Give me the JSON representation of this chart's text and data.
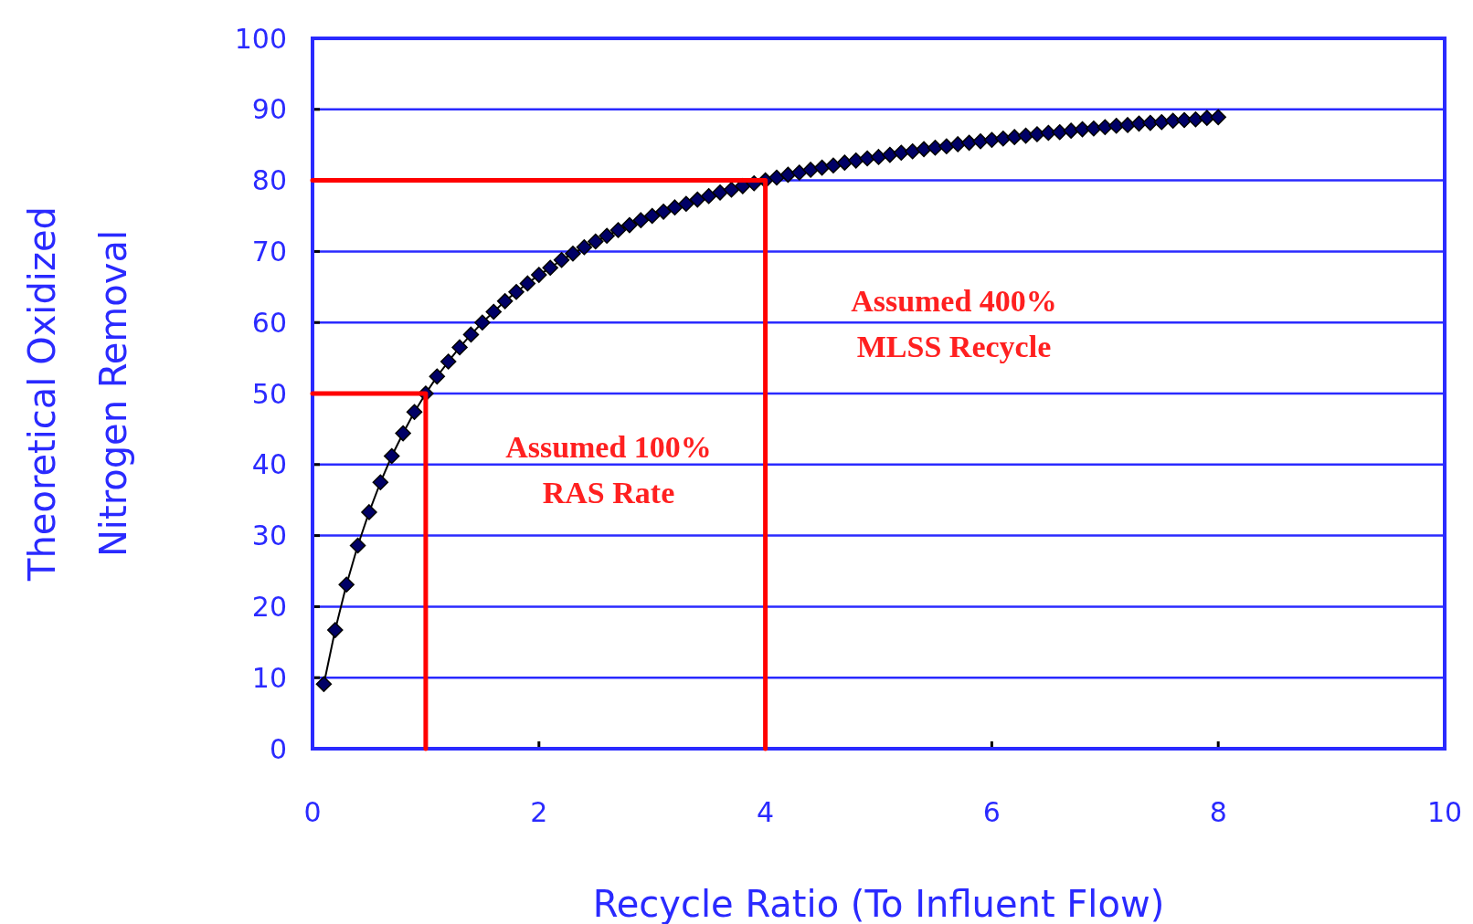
{
  "chart_data": {
    "type": "line",
    "xlabel": "Recycle Ratio (To Influent Flow)",
    "ylabel": "Theoretical Oxidized\nNitrogen Removal",
    "xlim": [
      0,
      10
    ],
    "xticks": [
      0,
      2,
      4,
      6,
      8,
      10
    ],
    "ylim": [
      0,
      100
    ],
    "yticks": [
      0,
      10,
      20,
      30,
      40,
      50,
      60,
      70,
      80,
      90,
      100
    ],
    "grid": "y",
    "marker": "diamond",
    "line_style": "solid",
    "series": [
      {
        "color": "#000066",
        "x": [
          0.1,
          0.2,
          0.3,
          0.4,
          0.5,
          0.6,
          0.7,
          0.8,
          0.9,
          1.0,
          1.1,
          1.2,
          1.3,
          1.4,
          1.5,
          1.6,
          1.7,
          1.8,
          1.9,
          2.0,
          2.1,
          2.2,
          2.3,
          2.4,
          2.5,
          2.6,
          2.7,
          2.8,
          2.9,
          3.0,
          3.1,
          3.2,
          3.3,
          3.4,
          3.5,
          3.6,
          3.7,
          3.8,
          3.9,
          4.0,
          4.1,
          4.2,
          4.3,
          4.4,
          4.5,
          4.6,
          4.7,
          4.8,
          4.9,
          5.0,
          5.1,
          5.2,
          5.3,
          5.4,
          5.5,
          5.6,
          5.7,
          5.8,
          5.9,
          6.0,
          6.1,
          6.2,
          6.3,
          6.4,
          6.5,
          6.6,
          6.7,
          6.8,
          6.9,
          7.0,
          7.1,
          7.2,
          7.3,
          7.4,
          7.5,
          7.6,
          7.7,
          7.8,
          7.9,
          8.0
        ],
        "values": [
          9.1,
          16.7,
          23.1,
          28.6,
          33.3,
          37.5,
          41.2,
          44.4,
          47.4,
          50.0,
          52.4,
          54.5,
          56.5,
          58.3,
          60.0,
          61.5,
          63.0,
          64.3,
          65.5,
          66.7,
          67.7,
          68.8,
          69.7,
          70.6,
          71.4,
          72.2,
          73.0,
          73.7,
          74.4,
          75.0,
          75.6,
          76.2,
          76.7,
          77.3,
          77.8,
          78.3,
          78.7,
          79.2,
          79.6,
          80.0,
          80.4,
          80.8,
          81.1,
          81.5,
          81.8,
          82.1,
          82.5,
          82.8,
          83.1,
          83.3,
          83.6,
          83.9,
          84.1,
          84.4,
          84.6,
          84.8,
          85.1,
          85.3,
          85.5,
          85.7,
          85.9,
          86.1,
          86.3,
          86.5,
          86.7,
          86.8,
          87.0,
          87.2,
          87.3,
          87.5,
          87.7,
          87.8,
          88.0,
          88.1,
          88.2,
          88.4,
          88.5,
          88.6,
          88.8,
          88.9
        ]
      },
      {
        "color": "#ff0000",
        "marker": "none",
        "x": [
          0,
          1,
          1
        ],
        "values": [
          50,
          50,
          0
        ]
      },
      {
        "color": "#ff0000",
        "marker": "none",
        "x": [
          0,
          4,
          4
        ],
        "values": [
          80,
          80,
          0
        ]
      }
    ],
    "annotations": [
      "Assumed 100%\nRAS Rate",
      "Assumed 400%\nMLSS Recycle"
    ]
  }
}
